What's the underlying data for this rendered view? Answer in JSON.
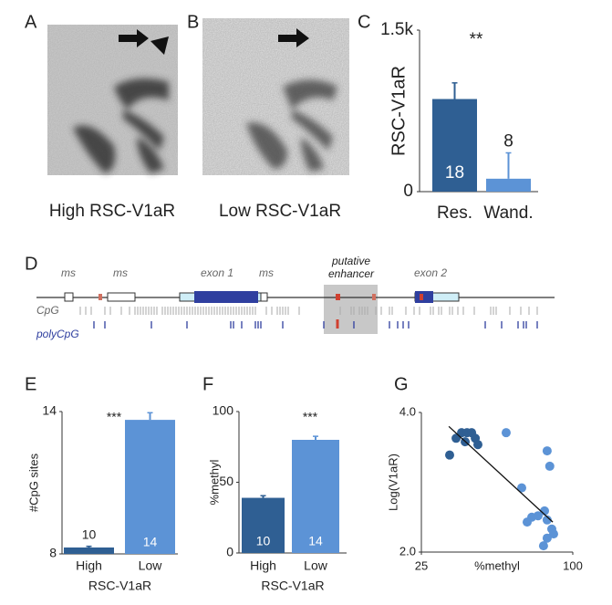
{
  "panel_labels": [
    "A",
    "B",
    "C",
    "D",
    "E",
    "F",
    "G"
  ],
  "images": [
    {
      "caption": "High RSC-V1aR"
    },
    {
      "caption": "Low RSC-V1aR"
    }
  ],
  "gene_diagram": {
    "labels": [
      "ms",
      "ms",
      "exon 1",
      "ms",
      "exon 2"
    ],
    "enhancer_label": [
      "putative",
      "enhancer"
    ],
    "tracks": [
      "CpG",
      "polyCpG"
    ]
  },
  "chart_data": [
    {
      "type": "bar",
      "ylabel": "RSC-V1aR",
      "categories": [
        "Res.",
        "Wand."
      ],
      "values": [
        860,
        120
      ],
      "errors": [
        150,
        240
      ],
      "n": [
        18,
        8
      ],
      "colors": [
        "#2f5f93",
        "#5c93d6"
      ],
      "ylim": [
        0,
        1500
      ],
      "yticks": [
        0,
        {
          "value": 1500,
          "label": "1.5k"
        }
      ],
      "annotation": "**"
    },
    {
      "type": "bar",
      "ylabel": "#CpG  sites",
      "xlabel": "RSC-V1aR",
      "categories": [
        "High",
        "Low"
      ],
      "values": [
        8.27,
        13.65
      ],
      "errors": [
        0.05,
        0.3
      ],
      "n": [
        10,
        14
      ],
      "colors": [
        "#2f5f93",
        "#5c93d6"
      ],
      "ylim": [
        8,
        14
      ],
      "yticks": [
        8,
        14
      ],
      "annotation": "***"
    },
    {
      "type": "bar",
      "ylabel": "%methyl",
      "xlabel": "RSC-V1aR",
      "categories": [
        "High",
        "Low"
      ],
      "values": [
        39,
        80
      ],
      "errors": [
        1.5,
        2.5
      ],
      "n": [
        10,
        14
      ],
      "colors": [
        "#2f5f93",
        "#5c93d6"
      ],
      "ylim": [
        0,
        100
      ],
      "yticks": [
        0,
        50,
        100
      ],
      "annotation": "***"
    },
    {
      "type": "scatter",
      "ylabel": "Log(V1aR)",
      "xlabel": "%methyl",
      "xlim": [
        25,
        100
      ],
      "xticks": [
        25,
        100
      ],
      "ylim": [
        2.0,
        4.0
      ],
      "yticks": [
        {
          "value": 2,
          "label": "2.0"
        },
        {
          "value": 4,
          "label": "4.0"
        }
      ],
      "series": [
        {
          "color": "#2f5f93",
          "x": [
            39,
            42.2,
            44.9,
            47.6,
            49.9,
            51.7,
            53,
            46.7
          ],
          "y": [
            3.39,
            3.63,
            3.71,
            3.71,
            3.71,
            3.63,
            3.54,
            3.58
          ]
        },
        {
          "color": "#5c93d6",
          "x": [
            67,
            87.3,
            88.6,
            74.7,
            86,
            82.8,
            79.7,
            77.4,
            87.3,
            89.6,
            90.5,
            87.3,
            85.5
          ],
          "y": [
            3.71,
            3.45,
            3.23,
            2.92,
            2.59,
            2.52,
            2.5,
            2.43,
            2.46,
            2.33,
            2.26,
            2.2,
            2.09
          ]
        }
      ],
      "trend_line": {
        "x": [
          38.6,
          90.1
        ],
        "y": [
          3.8,
          2.43
        ]
      }
    }
  ]
}
